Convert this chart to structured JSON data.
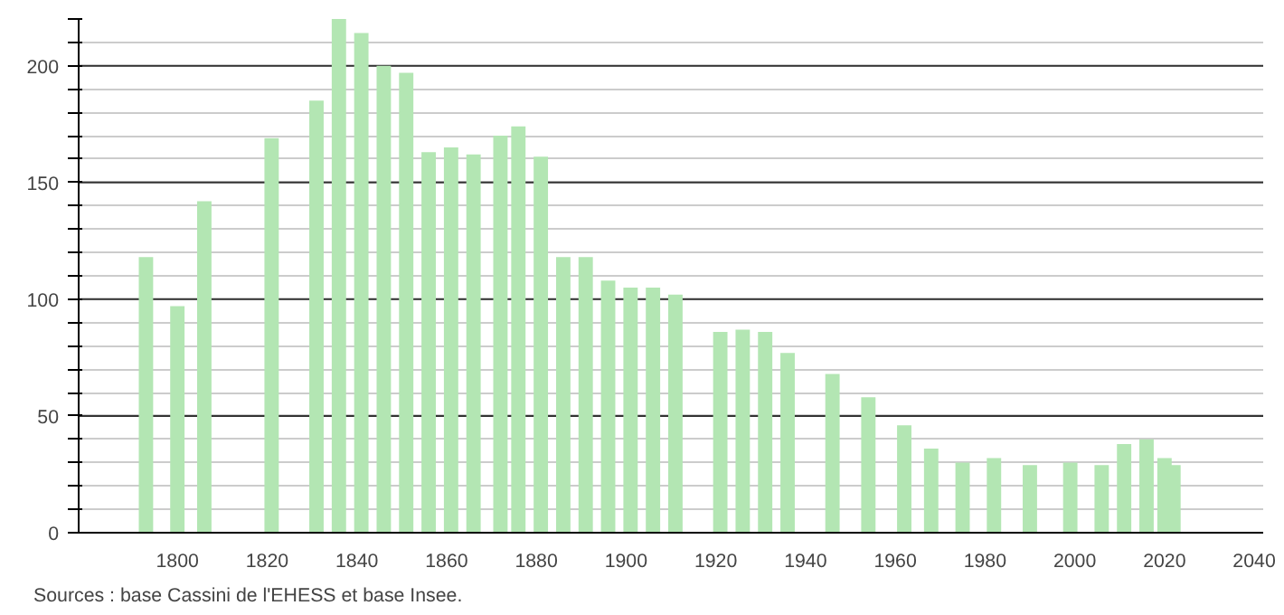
{
  "chart_data": {
    "type": "bar",
    "color": "#b3e6b3",
    "x": [
      1793,
      1800,
      1806,
      1821,
      1831,
      1836,
      1841,
      1846,
      1851,
      1856,
      1861,
      1866,
      1872,
      1876,
      1881,
      1886,
      1891,
      1896,
      1901,
      1906,
      1911,
      1921,
      1926,
      1931,
      1936,
      1946,
      1954,
      1962,
      1968,
      1975,
      1982,
      1990,
      1999,
      2006,
      2011,
      2016,
      2020,
      2022
    ],
    "values": [
      118,
      97,
      142,
      169,
      185,
      220,
      214,
      200,
      197,
      163,
      165,
      162,
      170,
      174,
      161,
      118,
      118,
      108,
      105,
      105,
      102,
      86,
      87,
      86,
      77,
      68,
      58,
      46,
      36,
      30,
      32,
      29,
      30,
      29,
      38,
      40,
      32,
      29
    ],
    "xlim": [
      1778,
      2042
    ],
    "xticks": [
      1800,
      1820,
      1840,
      1860,
      1880,
      1900,
      1920,
      1940,
      1960,
      1980,
      2000,
      2020,
      2040
    ],
    "ylim": [
      0,
      220
    ],
    "yticks": [
      0,
      {
        "value": 10,
        "label": null
      },
      {
        "value": 20,
        "label": null
      },
      {
        "value": 30,
        "label": null
      },
      {
        "value": 40,
        "label": null
      },
      50,
      {
        "value": 60,
        "label": null
      },
      {
        "value": 70,
        "label": null
      },
      {
        "value": 80,
        "label": null
      },
      {
        "value": 90,
        "label": null
      },
      100,
      {
        "value": 110,
        "label": null
      },
      {
        "value": 120,
        "label": null
      },
      {
        "value": 130,
        "label": null
      },
      {
        "value": 140,
        "label": null
      },
      150,
      {
        "value": 160,
        "label": null
      },
      {
        "value": 170,
        "label": null
      },
      {
        "value": 180,
        "label": null
      },
      {
        "value": 190,
        "label": null
      },
      200,
      {
        "value": 210,
        "label": null
      },
      {
        "value": 220,
        "label": null
      }
    ],
    "grid": "y",
    "annotations": [
      "Sources : base Cassini de l'EHESS et base Insee."
    ]
  }
}
